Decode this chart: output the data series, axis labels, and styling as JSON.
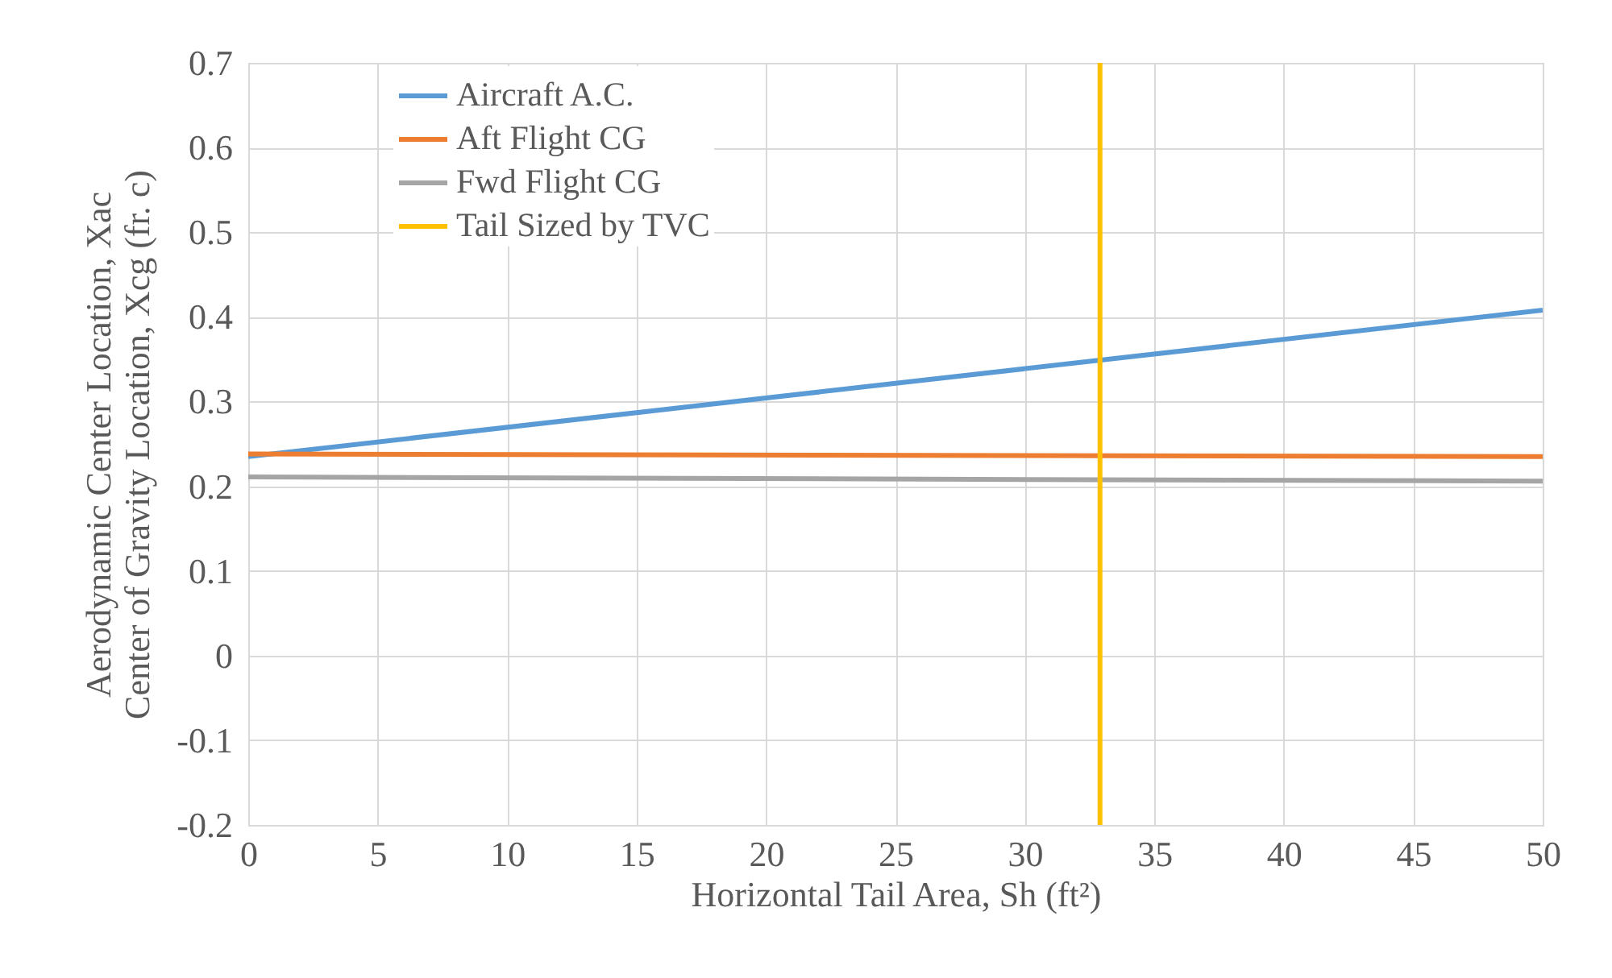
{
  "chart_data": {
    "type": "line",
    "xlabel": "Horizontal Tail Area, Sh (ft²)",
    "ylabel": "Aerodynamic Center Location, Xac\nCenter of Gravity Location, Xcg (fr. c)",
    "xlim": [
      0,
      50
    ],
    "xticks": [
      0,
      5,
      10,
      15,
      20,
      25,
      30,
      35,
      40,
      45,
      50
    ],
    "ylim": [
      -0.2,
      0.7
    ],
    "yticks": [
      -0.2,
      -0.1,
      {
        "value": 0,
        "label": "0"
      },
      0.1,
      0.2,
      0.3,
      0.4,
      0.5,
      0.6,
      0.7
    ],
    "grid": true,
    "legend": "top left",
    "marker": "none",
    "line_style": "solid",
    "series": [
      {
        "name": "Aircraft A.C.",
        "color": "#5b9bd5",
        "x": [
          0,
          50
        ],
        "values": [
          0.235,
          0.408
        ]
      },
      {
        "name": "Aft Flight CG",
        "color": "#ed7d31",
        "x": [
          0,
          50
        ],
        "values": [
          0.238,
          0.235
        ]
      },
      {
        "name": "Fwd Flight CG",
        "color": "#a5a5a5",
        "x": [
          0,
          50
        ],
        "values": [
          0.211,
          0.206
        ]
      },
      {
        "name": "Tail Sized by TVC",
        "color": "#ffc000",
        "x": [
          32.9,
          32.9
        ],
        "values": [
          -0.2,
          0.7
        ]
      }
    ]
  }
}
